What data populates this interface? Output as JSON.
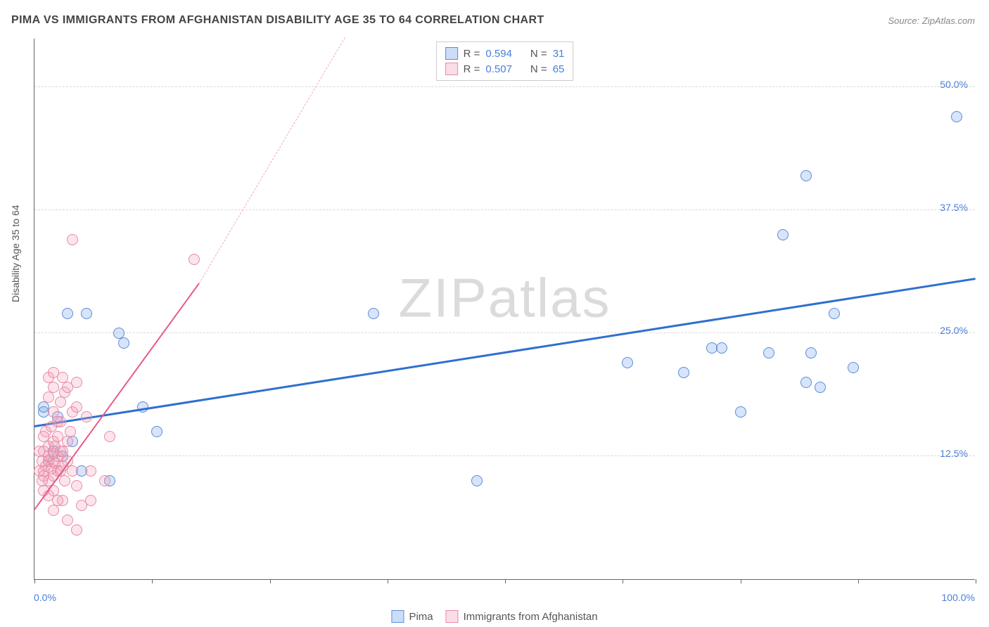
{
  "title": "PIMA VS IMMIGRANTS FROM AFGHANISTAN DISABILITY AGE 35 TO 64 CORRELATION CHART",
  "source": "Source: ZipAtlas.com",
  "y_axis_label": "Disability Age 35 to 64",
  "watermark": "ZIPatlas",
  "chart": {
    "type": "scatter",
    "background_color": "#ffffff",
    "grid_color": "#d8d8d8",
    "axis_color": "#666666",
    "text_color": "#555555",
    "value_color": "#4a7fd8",
    "xlim": [
      0,
      100
    ],
    "ylim": [
      0,
      55
    ],
    "y_ticks": [
      12.5,
      25.0,
      37.5,
      50.0
    ],
    "y_tick_labels": [
      "12.5%",
      "25.0%",
      "37.5%",
      "50.0%"
    ],
    "x_ticks": [
      0,
      12.5,
      25,
      37.5,
      50,
      62.5,
      75,
      87.5,
      100
    ],
    "x_min_label": "0.0%",
    "x_max_label": "100.0%",
    "marker_radius": 8,
    "marker_border_width": 1.5,
    "marker_fill_opacity": 0.28
  },
  "series": [
    {
      "name": "Pima",
      "color": "#6f9fe8",
      "border_color": "#5b8dd6",
      "r_value": "0.594",
      "n_value": "31",
      "trend": {
        "x1": 0,
        "y1": 15.5,
        "x2": 100,
        "y2": 30.5,
        "color": "#2f6fcf",
        "width": 2.5
      },
      "points": [
        [
          3.5,
          27.0
        ],
        [
          5.5,
          27.0
        ],
        [
          9.0,
          25.0
        ],
        [
          9.5,
          24.0
        ],
        [
          4.0,
          14.0
        ],
        [
          2.0,
          13.0
        ],
        [
          1.0,
          17.0
        ],
        [
          1.0,
          17.5
        ],
        [
          1.5,
          12.0
        ],
        [
          8.0,
          10.0
        ],
        [
          11.5,
          17.5
        ],
        [
          13.0,
          15.0
        ],
        [
          2.5,
          16.5
        ],
        [
          3.0,
          12.5
        ],
        [
          5.0,
          11.0
        ],
        [
          36.0,
          27.0
        ],
        [
          47.0,
          10.0
        ],
        [
          63.0,
          22.0
        ],
        [
          69.0,
          21.0
        ],
        [
          72.0,
          23.5
        ],
        [
          73.0,
          23.5
        ],
        [
          75.0,
          17.0
        ],
        [
          78.0,
          23.0
        ],
        [
          79.5,
          35.0
        ],
        [
          82.0,
          20.0
        ],
        [
          82.5,
          23.0
        ],
        [
          83.5,
          19.5
        ],
        [
          85.0,
          27.0
        ],
        [
          87.0,
          21.5
        ],
        [
          82.0,
          41.0
        ],
        [
          98.0,
          47.0
        ]
      ]
    },
    {
      "name": "Immigrants from Afghanistan",
      "color": "#f29fb6",
      "border_color": "#e88aa5",
      "r_value": "0.507",
      "n_value": "65",
      "trend": {
        "x1": 0,
        "y1": 7.0,
        "x2": 17.5,
        "y2": 30.0,
        "color": "#e85a8a",
        "width": 2.2
      },
      "trend_dashed": {
        "x1": 17.5,
        "y1": 30.0,
        "x2": 33.0,
        "y2": 55.0,
        "color": "#f2a8bc"
      },
      "points": [
        [
          1.0,
          11.0
        ],
        [
          1.2,
          11.5
        ],
        [
          1.5,
          12.0
        ],
        [
          1.8,
          11.2
        ],
        [
          2.0,
          12.0
        ],
        [
          2.2,
          11.8
        ],
        [
          2.5,
          12.5
        ],
        [
          1.0,
          10.5
        ],
        [
          1.5,
          10.0
        ],
        [
          2.0,
          10.5
        ],
        [
          2.5,
          11.0
        ],
        [
          3.0,
          11.5
        ],
        [
          1.0,
          13.0
        ],
        [
          1.5,
          13.5
        ],
        [
          2.0,
          14.0
        ],
        [
          2.5,
          14.5
        ],
        [
          3.0,
          13.0
        ],
        [
          1.2,
          15.0
        ],
        [
          1.8,
          15.5
        ],
        [
          2.5,
          16.0
        ],
        [
          3.5,
          12.0
        ],
        [
          4.0,
          11.0
        ],
        [
          2.0,
          9.0
        ],
        [
          3.0,
          8.0
        ],
        [
          3.5,
          6.0
        ],
        [
          4.5,
          5.0
        ],
        [
          5.0,
          7.5
        ],
        [
          6.0,
          8.0
        ],
        [
          2.8,
          18.0
        ],
        [
          3.2,
          19.0
        ],
        [
          3.5,
          19.5
        ],
        [
          4.5,
          20.0
        ],
        [
          1.5,
          20.5
        ],
        [
          2.0,
          21.0
        ],
        [
          4.0,
          17.0
        ],
        [
          4.5,
          17.5
        ],
        [
          5.5,
          16.5
        ],
        [
          6.0,
          11.0
        ],
        [
          7.5,
          10.0
        ],
        [
          8.0,
          14.5
        ],
        [
          3.8,
          15.0
        ],
        [
          2.8,
          16.0
        ],
        [
          3.5,
          14.0
        ],
        [
          2.0,
          17.0
        ],
        [
          1.0,
          9.0
        ],
        [
          0.8,
          10.0
        ],
        [
          0.5,
          11.0
        ],
        [
          0.8,
          12.0
        ],
        [
          0.5,
          13.0
        ],
        [
          1.0,
          14.5
        ],
        [
          2.8,
          11.0
        ],
        [
          3.2,
          10.0
        ],
        [
          4.5,
          9.5
        ],
        [
          1.5,
          8.5
        ],
        [
          2.5,
          8.0
        ],
        [
          2.0,
          7.0
        ],
        [
          1.5,
          12.5
        ],
        [
          2.0,
          12.8
        ],
        [
          2.2,
          13.5
        ],
        [
          2.8,
          13.0
        ],
        [
          4.0,
          34.5
        ],
        [
          17.0,
          32.5
        ],
        [
          3.0,
          20.5
        ],
        [
          2.0,
          19.5
        ],
        [
          1.5,
          18.5
        ]
      ]
    }
  ],
  "legend_top": {
    "r_label": "R =",
    "n_label": "N ="
  },
  "legend_bottom": {
    "items": [
      "Pima",
      "Immigrants from Afghanistan"
    ]
  }
}
